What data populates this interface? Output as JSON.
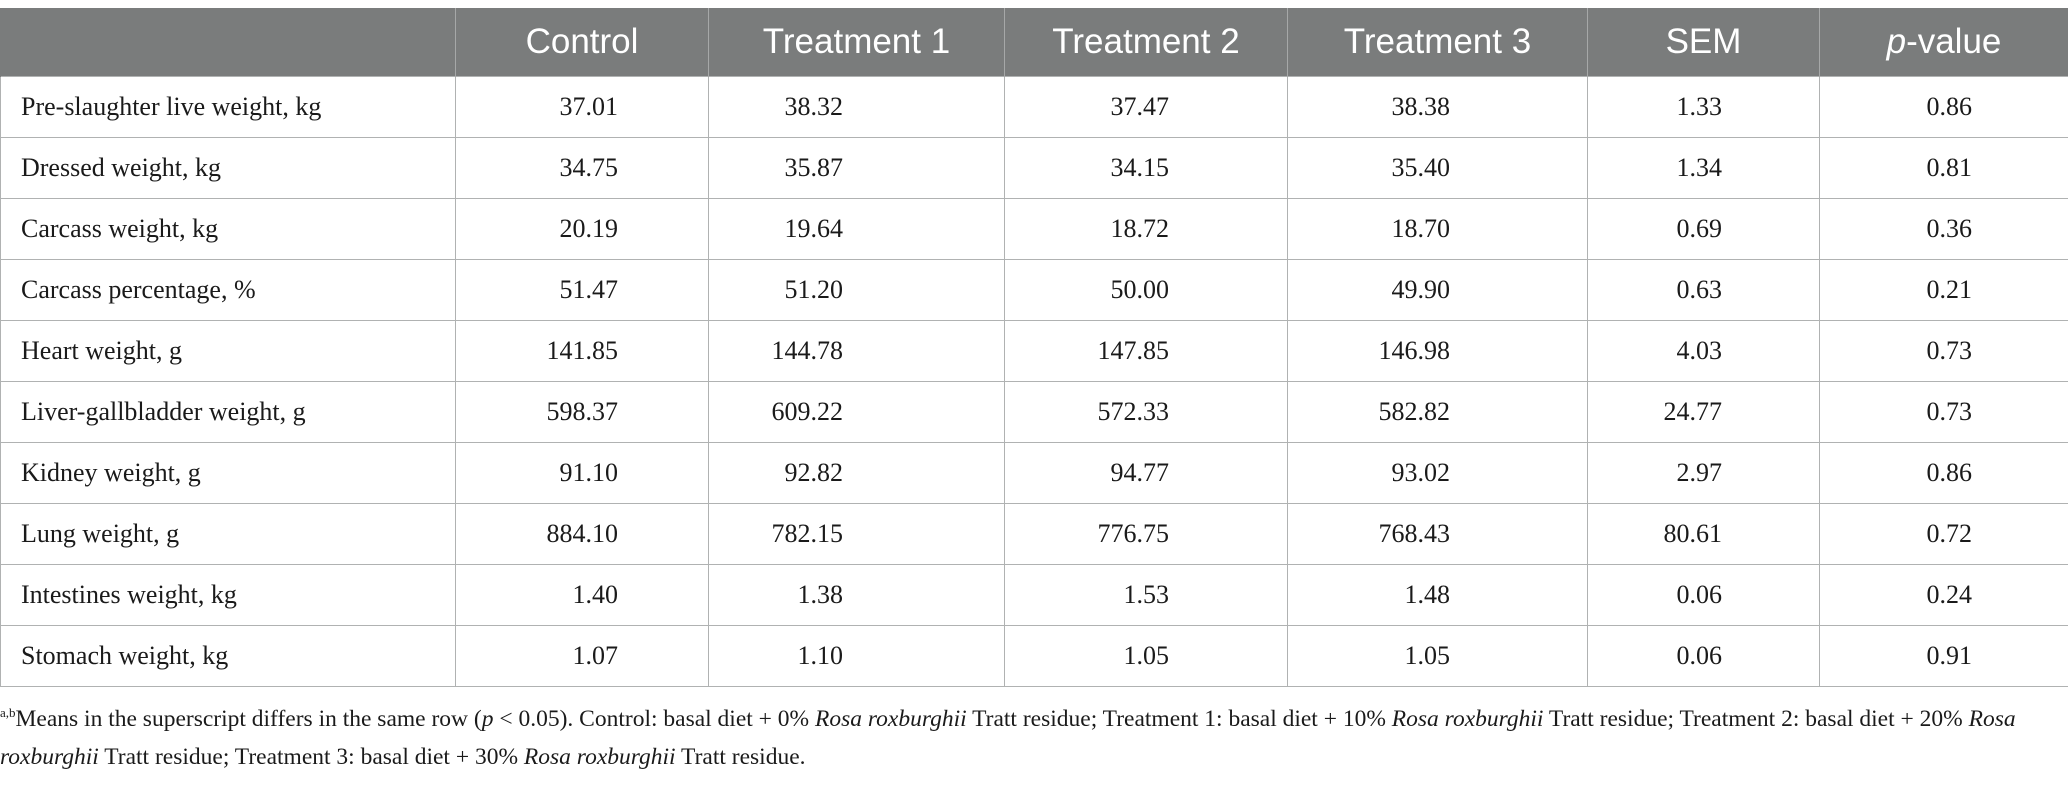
{
  "table": {
    "headers": {
      "corner": "",
      "control": "Control",
      "treatment1": "Treatment 1",
      "treatment2": "Treatment 2",
      "treatment3": "Treatment 3",
      "sem": "SEM",
      "pvalue_italic": "p",
      "pvalue_rest": "-value"
    },
    "rows": [
      {
        "label": "Pre-slaughter live weight, kg",
        "values": [
          "37.01",
          "38.32",
          "37.47",
          "38.38",
          "1.33",
          "0.86"
        ]
      },
      {
        "label": "Dressed weight, kg",
        "values": [
          "34.75",
          "35.87",
          "34.15",
          "35.40",
          "1.34",
          "0.81"
        ]
      },
      {
        "label": "Carcass weight, kg",
        "values": [
          "20.19",
          "19.64",
          "18.72",
          "18.70",
          "0.69",
          "0.36"
        ]
      },
      {
        "label": "Carcass percentage, %",
        "values": [
          "51.47",
          "51.20",
          "50.00",
          "49.90",
          "0.63",
          "0.21"
        ]
      },
      {
        "label": "Heart weight, g",
        "values": [
          "141.85",
          "144.78",
          "147.85",
          "146.98",
          "4.03",
          "0.73"
        ]
      },
      {
        "label": "Liver-gallbladder weight, g",
        "values": [
          "598.37",
          "609.22",
          "572.33",
          "582.82",
          "24.77",
          "0.73"
        ]
      },
      {
        "label": "Kidney weight, g",
        "values": [
          "91.10",
          "92.82",
          "94.77",
          "93.02",
          "2.97",
          "0.86"
        ]
      },
      {
        "label": "Lung weight, g",
        "values": [
          "884.10",
          "782.15",
          "776.75",
          "768.43",
          "80.61",
          "0.72"
        ]
      },
      {
        "label": "Intestines weight, kg",
        "values": [
          "1.40",
          "1.38",
          "1.53",
          "1.48",
          "0.06",
          "0.24"
        ]
      },
      {
        "label": "Stomach weight, kg",
        "values": [
          "1.07",
          "1.10",
          "1.05",
          "1.05",
          "0.06",
          "0.91"
        ]
      }
    ]
  },
  "footnote": {
    "superscript": "a,b",
    "t1": "Means in the superscript differs in the same row (",
    "t1_italic_p": "p",
    "t2": " < 0.05). Control: basal diet + 0% ",
    "species1": "Rosa roxburghii",
    "t3": " Tratt residue; Treatment 1: basal diet + 10% ",
    "species2": "Rosa roxburghii",
    "t4": " Tratt residue; Treatment 2: basal diet + 20% ",
    "species3": "Rosa roxburghii",
    "t5": " Tratt residue; Treatment 3: basal diet + 30% ",
    "species4": "Rosa roxburghii",
    "t6": " Tratt residue."
  }
}
